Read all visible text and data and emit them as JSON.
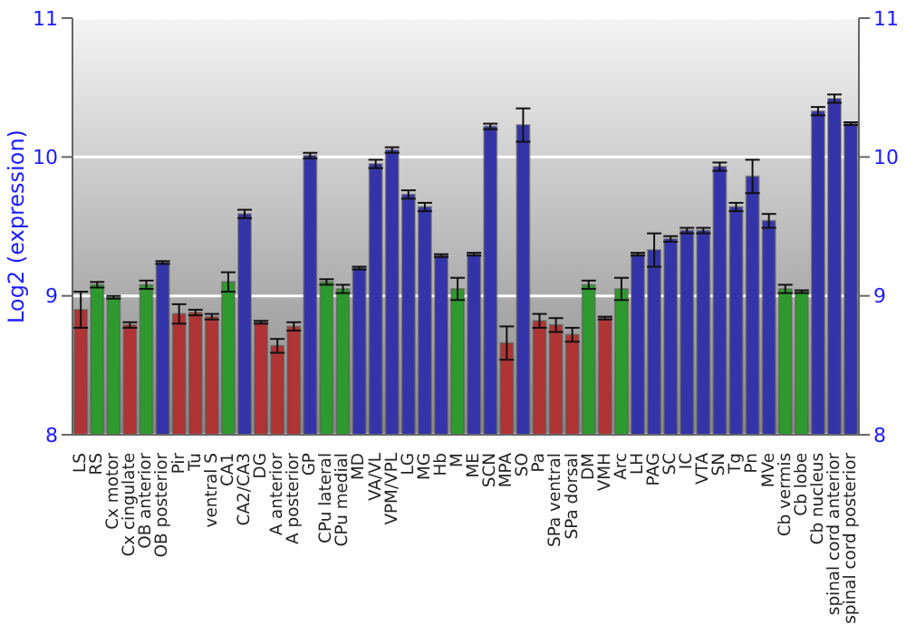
{
  "chart_data": {
    "type": "bar",
    "ylabel": "Log2 (expression)",
    "categories": [
      "LS",
      "RS",
      "Cx motor",
      "Cx cingulate",
      "OB anterior",
      "OB posterior",
      "Pir",
      "Tu",
      "ventral S",
      "CA1",
      "CA2/CA3",
      "DG",
      "A anterior",
      "A posterior",
      "GP",
      "CPu lateral",
      "CPu medial",
      "MD",
      "VA/VL",
      "VPM/VPL",
      "LG",
      "MG",
      "Hb",
      "M",
      "ME",
      "SCN",
      "MPA",
      "SO",
      "Pa",
      "SPa ventral",
      "SPa dorsal",
      "DM",
      "VMH",
      "Arc",
      "LH",
      "PAG",
      "SC",
      "IC",
      "VTA",
      "SN",
      "Tg",
      "Pn",
      "MVe",
      "Cb vermis",
      "Cb lobe",
      "Cb nucleus",
      "spinal cord anterior",
      "spinal cord posterior"
    ],
    "values": [
      8.9,
      9.08,
      8.99,
      8.79,
      9.08,
      9.24,
      8.87,
      8.88,
      8.85,
      9.1,
      9.59,
      8.81,
      8.64,
      8.78,
      10.01,
      9.1,
      9.05,
      9.2,
      9.95,
      10.05,
      9.73,
      9.64,
      9.29,
      9.05,
      9.3,
      10.22,
      8.66,
      10.23,
      8.82,
      8.79,
      8.72,
      9.08,
      8.84,
      9.05,
      9.3,
      9.33,
      9.41,
      9.47,
      9.47,
      9.93,
      9.64,
      9.86,
      9.54,
      9.05,
      9.03,
      10.33,
      10.42,
      10.24
    ],
    "errors": [
      0.13,
      0.02,
      0.01,
      0.02,
      0.03,
      0.01,
      0.07,
      0.02,
      0.02,
      0.07,
      0.03,
      0.01,
      0.05,
      0.03,
      0.02,
      0.02,
      0.03,
      0.01,
      0.03,
      0.02,
      0.03,
      0.03,
      0.01,
      0.08,
      0.01,
      0.02,
      0.12,
      0.12,
      0.05,
      0.05,
      0.05,
      0.03,
      0.01,
      0.08,
      0.01,
      0.12,
      0.02,
      0.02,
      0.02,
      0.03,
      0.03,
      0.12,
      0.05,
      0.03,
      0.01,
      0.03,
      0.03,
      0.01
    ],
    "colors": [
      "#b03434",
      "#2e9a2e",
      "#2e9a2e",
      "#b03434",
      "#2e9a2e",
      "#3434aa",
      "#b03434",
      "#b03434",
      "#b03434",
      "#2e9a2e",
      "#3434aa",
      "#b03434",
      "#b03434",
      "#b03434",
      "#3434aa",
      "#2e9a2e",
      "#2e9a2e",
      "#3434aa",
      "#3434aa",
      "#3434aa",
      "#3434aa",
      "#3434aa",
      "#3434aa",
      "#2e9a2e",
      "#3434aa",
      "#3434aa",
      "#b03434",
      "#3434aa",
      "#b03434",
      "#b03434",
      "#b03434",
      "#2e9a2e",
      "#b03434",
      "#2e9a2e",
      "#3434aa",
      "#3434aa",
      "#3434aa",
      "#3434aa",
      "#3434aa",
      "#3434aa",
      "#3434aa",
      "#3434aa",
      "#3434aa",
      "#2e9a2e",
      "#2e9a2e",
      "#3434aa",
      "#3434aa",
      "#3434aa"
    ],
    "ylim": [
      8,
      11
    ],
    "yticks": [
      8,
      9,
      10,
      11
    ],
    "y2lim": [
      8,
      11
    ],
    "y2ticks": [
      8,
      9,
      10,
      11
    ],
    "grid": "y"
  }
}
